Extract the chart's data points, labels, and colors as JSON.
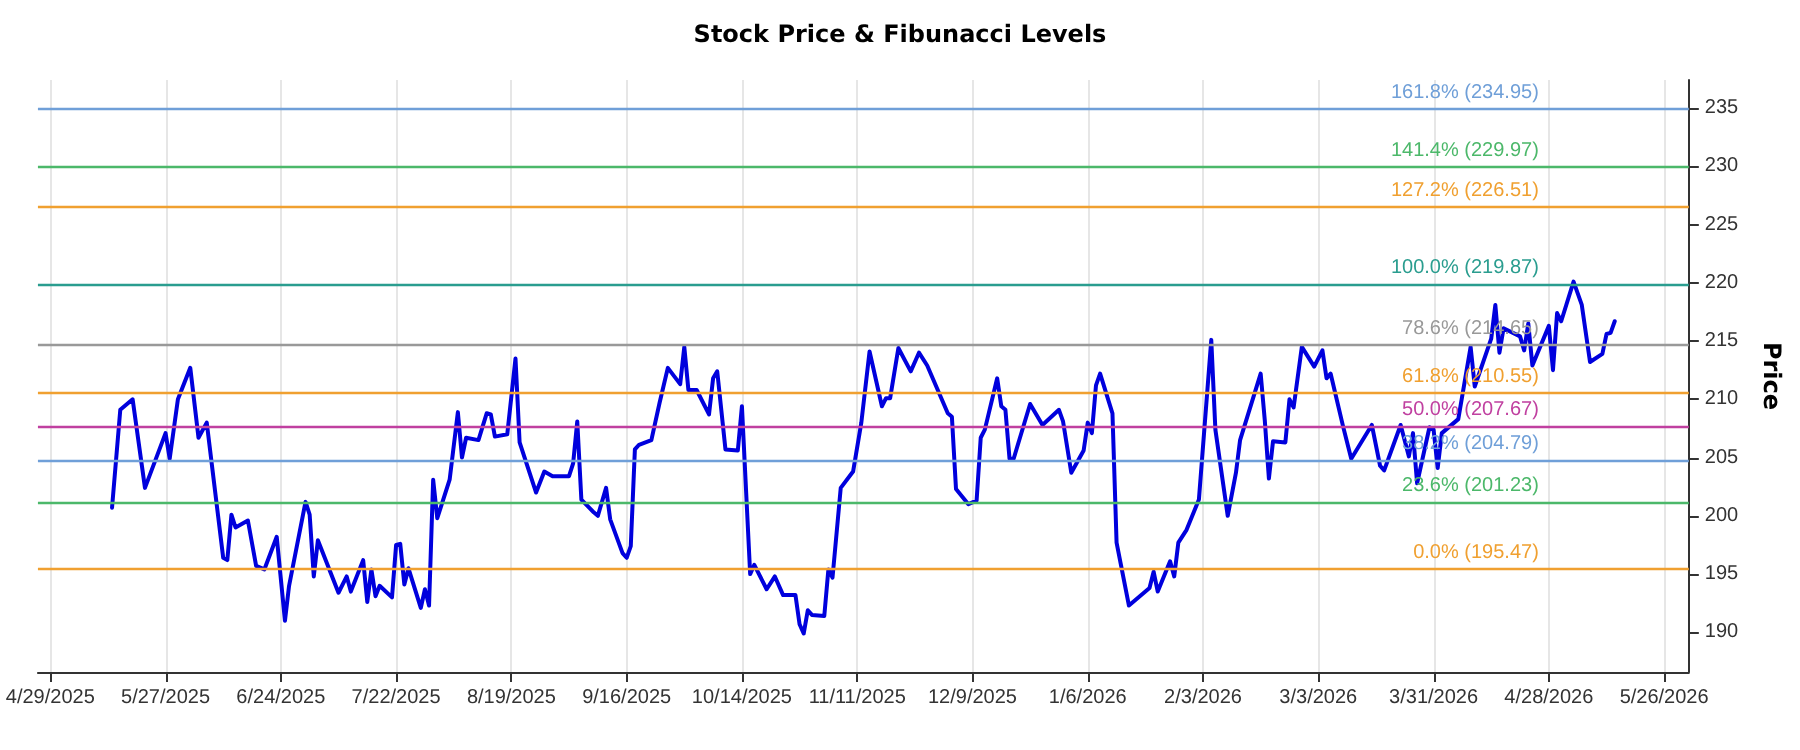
{
  "chart_data": {
    "type": "line",
    "title": "Stock Price & Fibunacci Levels",
    "ylabel": "Price",
    "x": [
      "2025-05-14",
      "2025-05-16",
      "2025-05-19",
      "2025-05-22",
      "2025-05-27",
      "2025-05-28",
      "2025-05-30",
      "2025-06-02",
      "2025-06-04",
      "2025-06-06",
      "2025-06-10",
      "2025-06-11",
      "2025-06-12",
      "2025-06-13",
      "2025-06-16",
      "2025-06-18",
      "2025-06-20",
      "2025-06-23",
      "2025-06-25",
      "2025-06-26",
      "2025-06-30",
      "2025-07-01",
      "2025-07-02",
      "2025-07-03",
      "2025-07-08",
      "2025-07-10",
      "2025-07-11",
      "2025-07-14",
      "2025-07-15",
      "2025-07-16",
      "2025-07-17",
      "2025-07-18",
      "2025-07-21",
      "2025-07-22",
      "2025-07-23",
      "2025-07-24",
      "2025-07-25",
      "2025-07-28",
      "2025-07-29",
      "2025-07-30",
      "2025-07-31",
      "2025-08-01",
      "2025-08-04",
      "2025-08-06",
      "2025-08-07",
      "2025-08-08",
      "2025-08-11",
      "2025-08-13",
      "2025-08-14",
      "2025-08-15",
      "2025-08-18",
      "2025-08-20",
      "2025-08-21",
      "2025-08-25",
      "2025-08-27",
      "2025-08-29",
      "2025-09-02",
      "2025-09-03",
      "2025-09-04",
      "2025-09-05",
      "2025-09-08",
      "2025-09-09",
      "2025-09-11",
      "2025-09-12",
      "2025-09-15",
      "2025-09-16",
      "2025-09-17",
      "2025-09-18",
      "2025-09-19",
      "2025-09-22",
      "2025-09-24",
      "2025-09-26",
      "2025-09-29",
      "2025-09-30",
      "2025-10-01",
      "2025-10-03",
      "2025-10-06",
      "2025-10-07",
      "2025-10-08",
      "2025-10-10",
      "2025-10-13",
      "2025-10-14",
      "2025-10-16",
      "2025-10-17",
      "2025-10-20",
      "2025-10-22",
      "2025-10-24",
      "2025-10-27",
      "2025-10-28",
      "2025-10-29",
      "2025-10-30",
      "2025-10-31",
      "2025-11-03",
      "2025-11-04",
      "2025-11-05",
      "2025-11-07",
      "2025-11-10",
      "2025-11-12",
      "2025-11-14",
      "2025-11-17",
      "2025-11-18",
      "2025-11-19",
      "2025-11-21",
      "2025-11-24",
      "2025-11-26",
      "2025-11-28",
      "2025-12-03",
      "2025-12-04",
      "2025-12-05",
      "2025-12-08",
      "2025-12-10",
      "2025-12-11",
      "2025-12-12",
      "2025-12-15",
      "2025-12-16",
      "2025-12-17",
      "2025-12-18",
      "2025-12-19",
      "2025-12-23",
      "2025-12-26",
      "2025-12-30",
      "2025-12-31",
      "2026-01-02",
      "2026-01-05",
      "2026-01-06",
      "2026-01-07",
      "2026-01-08",
      "2026-01-09",
      "2026-01-12",
      "2026-01-13",
      "2026-01-14",
      "2026-01-16",
      "2026-01-21",
      "2026-01-22",
      "2026-01-23",
      "2026-01-26",
      "2026-01-27",
      "2026-01-28",
      "2026-01-30",
      "2026-02-02",
      "2026-02-05",
      "2026-02-06",
      "2026-02-09",
      "2026-02-11",
      "2026-02-12",
      "2026-02-17",
      "2026-02-18",
      "2026-02-19",
      "2026-02-20",
      "2026-02-23",
      "2026-02-24",
      "2026-02-25",
      "2026-02-27",
      "2026-03-02",
      "2026-03-04",
      "2026-03-05",
      "2026-03-06",
      "2026-03-09",
      "2026-03-11",
      "2026-03-16",
      "2026-03-18",
      "2026-03-19",
      "2026-03-23",
      "2026-03-25",
      "2026-03-26",
      "2026-03-27",
      "2026-03-30",
      "2026-03-31",
      "2026-04-01",
      "2026-04-02",
      "2026-04-06",
      "2026-04-09",
      "2026-04-10",
      "2026-04-14",
      "2026-04-15",
      "2026-04-16",
      "2026-04-17",
      "2026-04-21",
      "2026-04-22",
      "2026-04-23",
      "2026-04-24",
      "2026-04-28",
      "2026-04-29",
      "2026-04-30",
      "2026-05-01",
      "2026-05-04",
      "2026-05-06",
      "2026-05-08",
      "2026-05-11",
      "2026-05-12",
      "2026-05-13",
      "2026-05-14"
    ],
    "series": [
      {
        "color": "#0000dd",
        "values": [
          200.7,
          209.1,
          210.0,
          202.4,
          207.1,
          204.9,
          210.0,
          212.7,
          206.7,
          208.0,
          196.4,
          196.2,
          200.1,
          199.0,
          199.6,
          195.7,
          195.4,
          198.2,
          191.0,
          194.0,
          201.2,
          200.1,
          194.8,
          197.9,
          193.4,
          194.8,
          193.5,
          196.2,
          192.6,
          195.4,
          193.1,
          194.0,
          193.0,
          197.5,
          197.6,
          194.1,
          195.5,
          192.1,
          193.7,
          192.3,
          203.1,
          199.8,
          203.1,
          208.9,
          205.0,
          206.7,
          206.5,
          208.8,
          208.7,
          206.8,
          207.0,
          213.5,
          206.3,
          202.0,
          203.8,
          203.4,
          203.4,
          204.5,
          208.1,
          201.4,
          200.3,
          200.0,
          202.4,
          199.7,
          196.8,
          196.4,
          197.4,
          205.7,
          206.1,
          206.5,
          209.7,
          212.7,
          211.3,
          214.5,
          210.8,
          210.8,
          208.7,
          211.8,
          212.4,
          205.7,
          205.6,
          209.4,
          195.0,
          195.8,
          193.7,
          194.8,
          193.2,
          193.2,
          190.7,
          189.9,
          191.9,
          191.5,
          191.4,
          195.4,
          194.7,
          202.4,
          203.8,
          208.0,
          214.1,
          209.4,
          210.1,
          210.1,
          214.4,
          212.4,
          214.0,
          212.9,
          208.8,
          208.5,
          202.3,
          201.0,
          201.3,
          206.7,
          207.4,
          211.8,
          209.4,
          209.1,
          204.9,
          204.9,
          209.6,
          207.8,
          209.1,
          208.1,
          203.7,
          205.6,
          208.0,
          207.1,
          211.2,
          212.2,
          208.8,
          197.7,
          195.9,
          192.3,
          193.8,
          195.2,
          193.5,
          196.1,
          194.8,
          197.7,
          198.8,
          201.4,
          215.1,
          207.4,
          200.0,
          203.7,
          206.5,
          212.2,
          208.2,
          203.2,
          206.4,
          206.3,
          210.0,
          209.3,
          214.5,
          212.8,
          214.2,
          211.8,
          212.2,
          207.7,
          204.9,
          207.8,
          204.3,
          203.9,
          207.8,
          205.1,
          207.1,
          202.8,
          207.6,
          207.4,
          204.1,
          207.1,
          208.3,
          214.5,
          211.1,
          215.2,
          218.1,
          214.0,
          216.1,
          215.4,
          214.2,
          216.5,
          212.9,
          216.3,
          212.5,
          217.4,
          216.7,
          220.1,
          218.1,
          213.2,
          213.9,
          215.6,
          215.7,
          216.7
        ]
      }
    ],
    "xlim": [
      "2025-04-26",
      "2026-06-01"
    ],
    "xticks": [
      {
        "value": "2025-04-29",
        "label": "4/29/2025"
      },
      {
        "value": "2025-05-27",
        "label": "5/27/2025"
      },
      {
        "value": "2025-06-24",
        "label": "6/24/2025"
      },
      {
        "value": "2025-07-22",
        "label": "7/22/2025"
      },
      {
        "value": "2025-08-19",
        "label": "8/19/2025"
      },
      {
        "value": "2025-09-16",
        "label": "9/16/2025"
      },
      {
        "value": "2025-10-14",
        "label": "10/14/2025"
      },
      {
        "value": "2025-11-11",
        "label": "11/11/2025"
      },
      {
        "value": "2025-12-09",
        "label": "12/9/2025"
      },
      {
        "value": "2026-01-06",
        "label": "1/6/2026"
      },
      {
        "value": "2026-02-03",
        "label": "2/3/2026"
      },
      {
        "value": "2026-03-03",
        "label": "3/3/2026"
      },
      {
        "value": "2026-03-31",
        "label": "3/31/2026"
      },
      {
        "value": "2026-04-28",
        "label": "4/28/2026"
      },
      {
        "value": "2026-05-26",
        "label": "5/26/2026"
      }
    ],
    "ylim": [
      186.6,
      237.4
    ],
    "yticks": [
      190,
      195,
      200,
      205,
      210,
      215,
      220,
      225,
      230,
      235
    ],
    "grid": "x",
    "marker": "none",
    "line_style": "solid",
    "ref_lines": [
      {
        "axis": "y",
        "value": 234.95,
        "label": "161.8% (234.95)",
        "color": "#6f9fd8"
      },
      {
        "axis": "y",
        "value": 229.97,
        "label": "141.4% (229.97)",
        "color": "#4cb86a"
      },
      {
        "axis": "y",
        "value": 226.51,
        "label": "127.2% (226.51)",
        "color": "#f0a030"
      },
      {
        "axis": "y",
        "value": 219.87,
        "label": "100.0% (219.87)",
        "color": "#2a9d8f"
      },
      {
        "axis": "y",
        "value": 214.65,
        "label": "78.6% (214.65)",
        "color": "#999999"
      },
      {
        "axis": "y",
        "value": 210.55,
        "label": "61.8% (210.55)",
        "color": "#f0a030"
      },
      {
        "axis": "y",
        "value": 207.67,
        "label": "50.0% (207.67)",
        "color": "#c040a0"
      },
      {
        "axis": "y",
        "value": 204.79,
        "label": "38.2% (204.79)",
        "color": "#6f9fd8"
      },
      {
        "axis": "y",
        "value": 201.23,
        "label": "23.6% (201.23)",
        "color": "#4cb86a"
      },
      {
        "axis": "y",
        "value": 195.47,
        "label": "0.0% (195.47)",
        "color": "#f0a030"
      }
    ]
  }
}
